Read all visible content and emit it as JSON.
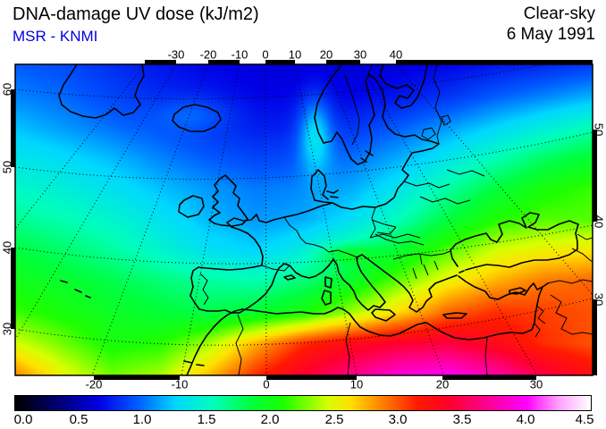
{
  "header": {
    "title": "DNA-damage UV dose (kJ/m2)",
    "source": "MSR - KNMI",
    "condition": "Clear-sky",
    "date": "6 May 1991"
  },
  "axes": {
    "top": [
      "-30",
      "-20",
      "-10",
      "0",
      "10",
      "20",
      "30",
      "40"
    ],
    "bottom": [
      "-20",
      "-10",
      "0",
      "10",
      "20",
      "30"
    ],
    "left": [
      "60",
      "50",
      "40",
      "30"
    ],
    "right": [
      "50",
      "40",
      "30"
    ]
  },
  "colorbar": {
    "labels": [
      "0.0",
      "0.5",
      "1.0",
      "1.5",
      "2.0",
      "2.5",
      "3.0",
      "3.5",
      "4.0",
      "4.5"
    ],
    "min": 0.0,
    "max": 4.5,
    "units": "kJ/m2"
  },
  "chart_data": {
    "type": "heatmap",
    "title": "DNA-damage UV dose (kJ/m2), Clear-sky, 6 May 1991",
    "region": "Europe / North Atlantic / North Africa, conic-style projection",
    "lon_ticks": [
      -30,
      -20,
      -10,
      0,
      10,
      20,
      30,
      40
    ],
    "lat_ticks": [
      30,
      40,
      50,
      60
    ],
    "value_range": [
      0.0,
      4.5
    ],
    "units": "kJ/m2",
    "grid": {
      "description": "Dose values sampled on a normalized map grid; u = 0..1 west-to-east (13 columns), v = 0..1 north-to-south (11 rows); bilinear field between nodes",
      "values": [
        [
          0.95,
          0.9,
          0.8,
          0.72,
          0.66,
          0.62,
          0.6,
          0.6,
          0.62,
          0.66,
          0.72,
          0.78,
          0.85
        ],
        [
          1.05,
          0.98,
          0.88,
          0.78,
          0.72,
          0.66,
          0.65,
          0.66,
          0.72,
          0.82,
          0.95,
          1.05,
          1.15
        ],
        [
          1.2,
          1.1,
          1.0,
          0.9,
          0.8,
          0.74,
          0.75,
          0.82,
          0.95,
          1.1,
          1.25,
          1.4,
          1.55
        ],
        [
          1.35,
          1.28,
          1.18,
          1.05,
          0.95,
          0.88,
          0.9,
          1.0,
          1.15,
          1.35,
          1.55,
          1.75,
          1.9
        ],
        [
          1.5,
          1.42,
          1.32,
          1.2,
          1.1,
          1.03,
          1.05,
          1.15,
          1.35,
          1.6,
          1.85,
          2.05,
          2.15
        ],
        [
          1.65,
          1.57,
          1.47,
          1.33,
          1.18,
          1.1,
          1.15,
          1.3,
          1.55,
          1.85,
          2.1,
          2.2,
          2.2
        ],
        [
          1.85,
          1.75,
          1.62,
          1.47,
          1.32,
          1.25,
          1.4,
          1.62,
          1.9,
          2.2,
          2.45,
          2.55,
          2.6
        ],
        [
          2.0,
          1.92,
          1.82,
          1.72,
          1.62,
          1.58,
          1.72,
          1.95,
          2.25,
          2.55,
          2.75,
          2.9,
          2.95
        ],
        [
          2.15,
          2.05,
          1.95,
          1.88,
          1.82,
          1.9,
          2.05,
          2.35,
          2.65,
          2.95,
          3.1,
          3.05,
          3.0
        ],
        [
          2.45,
          2.25,
          2.05,
          2.1,
          2.35,
          2.75,
          3.1,
          3.3,
          3.4,
          3.45,
          3.3,
          3.1,
          3.0
        ],
        [
          2.85,
          2.5,
          2.25,
          2.35,
          2.7,
          3.1,
          3.4,
          3.65,
          3.9,
          3.95,
          3.75,
          3.45,
          3.25
        ]
      ]
    },
    "color_scale": {
      "stops": [
        [
          0.0,
          "#000000"
        ],
        [
          0.35,
          "#000078"
        ],
        [
          0.65,
          "#0000e6"
        ],
        [
          0.95,
          "#005aff"
        ],
        [
          1.25,
          "#00d7ff"
        ],
        [
          1.55,
          "#00ffb9"
        ],
        [
          1.85,
          "#00ff3c"
        ],
        [
          2.1,
          "#1eff00"
        ],
        [
          2.45,
          "#d7ff00"
        ],
        [
          2.62,
          "#ffe100"
        ],
        [
          2.88,
          "#ff7d00"
        ],
        [
          3.15,
          "#ff1900"
        ],
        [
          3.4,
          "#ff002d"
        ],
        [
          3.7,
          "#ff0096"
        ],
        [
          4.0,
          "#ff00ff"
        ],
        [
          4.25,
          "#ffa0ff"
        ],
        [
          4.5,
          "#ffffff"
        ]
      ]
    },
    "legend_position": "bottom horizontal colorbar"
  }
}
